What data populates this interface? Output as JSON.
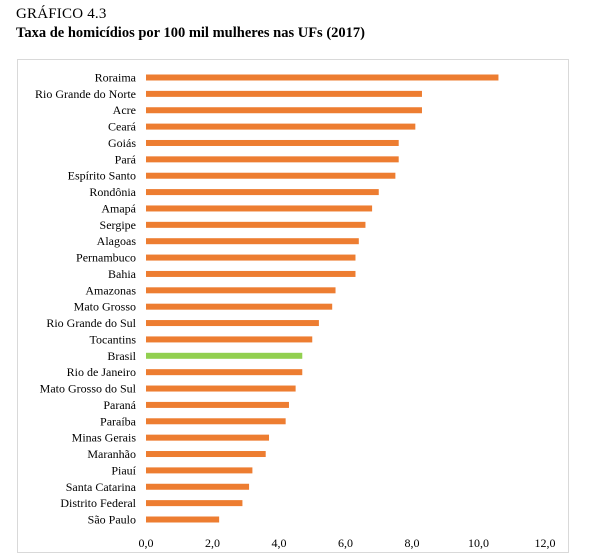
{
  "figure": {
    "label": "GRÁFICO 4.3",
    "title": "Taxa de homicídios por 100 mil mulheres nas UFs (2017)"
  },
  "chart_data": {
    "type": "bar",
    "orientation": "horizontal",
    "categories": [
      "Roraima",
      "Rio Grande do Norte",
      "Acre",
      "Ceará",
      "Goiás",
      "Pará",
      "Espírito Santo",
      "Rondônia",
      "Amapá",
      "Sergipe",
      "Alagoas",
      "Pernambuco",
      "Bahia",
      "Amazonas",
      "Mato Grosso",
      "Rio Grande do Sul",
      "Tocantins",
      "Brasil",
      "Rio de Janeiro",
      "Mato Grosso do Sul",
      "Paraná",
      "Paraíba",
      "Minas Gerais",
      "Maranhão",
      "Piauí",
      "Santa Catarina",
      "Distrito Federal",
      "São Paulo"
    ],
    "values": [
      10.6,
      8.3,
      8.3,
      8.1,
      7.6,
      7.6,
      7.5,
      7.0,
      6.8,
      6.6,
      6.4,
      6.3,
      6.3,
      5.7,
      5.6,
      5.2,
      5.0,
      4.7,
      4.7,
      4.5,
      4.3,
      4.2,
      3.7,
      3.6,
      3.2,
      3.1,
      2.9,
      2.2
    ],
    "highlight_category": "Brasil",
    "colors": {
      "default": "#ED7D31",
      "highlight": "#92D050"
    },
    "xlim": [
      0,
      12
    ],
    "xticks": [
      "0,0",
      "2,0",
      "4,0",
      "6,0",
      "8,0",
      "10,0",
      "12,0"
    ],
    "grid": false,
    "legend": "none"
  }
}
